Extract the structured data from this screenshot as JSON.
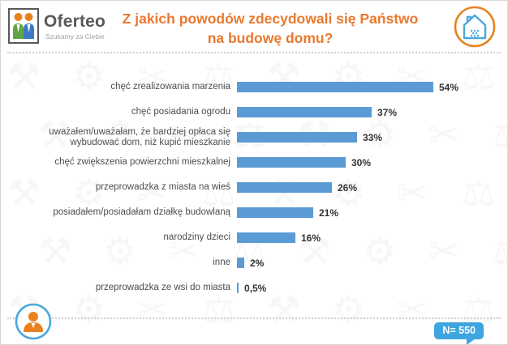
{
  "header": {
    "logo_brand": "Oferteo",
    "logo_tagline": "Szukamy za Ciebie",
    "title_line1": "Z jakich powodów zdecydowali się Państwo",
    "title_line2": "na budowę domu?"
  },
  "chart_data": {
    "type": "bar",
    "orientation": "horizontal",
    "title": "Z jakich powodów zdecydowali się Państwo na budowę domu?",
    "categories": [
      "chęć zrealizowania marzenia",
      "chęć posiadania ogrodu",
      "uważałem/uważałam, że bardziej opłaca się wybudować dom, niż kupić mieszkanie",
      "chęć zwiększenia powierzchni mieszkalnej",
      "przeprowadzka z miasta na wieś",
      "posiadałem/posiadałam działkę budowlaną",
      "narodziny dzieci",
      "inne",
      "przeprowadzka ze wsi do miasta"
    ],
    "values": [
      54,
      37,
      33,
      30,
      26,
      21,
      16,
      2,
      0.5
    ],
    "value_labels": [
      "54%",
      "37%",
      "33%",
      "30%",
      "26%",
      "21%",
      "16%",
      "2%",
      "0,5%"
    ],
    "bar_color": "#5b9bd5",
    "xlim": [
      0,
      60
    ],
    "grid": false,
    "legend": false,
    "annotation": "N= 550"
  },
  "footer": {
    "sample_label": "N= 550"
  },
  "colors": {
    "title_orange": "#e8792f",
    "bar_blue": "#5b9bd5",
    "badge_blue": "#3fa5e0",
    "icon_orange": "#e8821e",
    "icon_blue": "#4aa8de"
  },
  "watermark": {
    "glyphs": [
      "⚒",
      "⚙",
      "✂",
      "⚖"
    ]
  }
}
